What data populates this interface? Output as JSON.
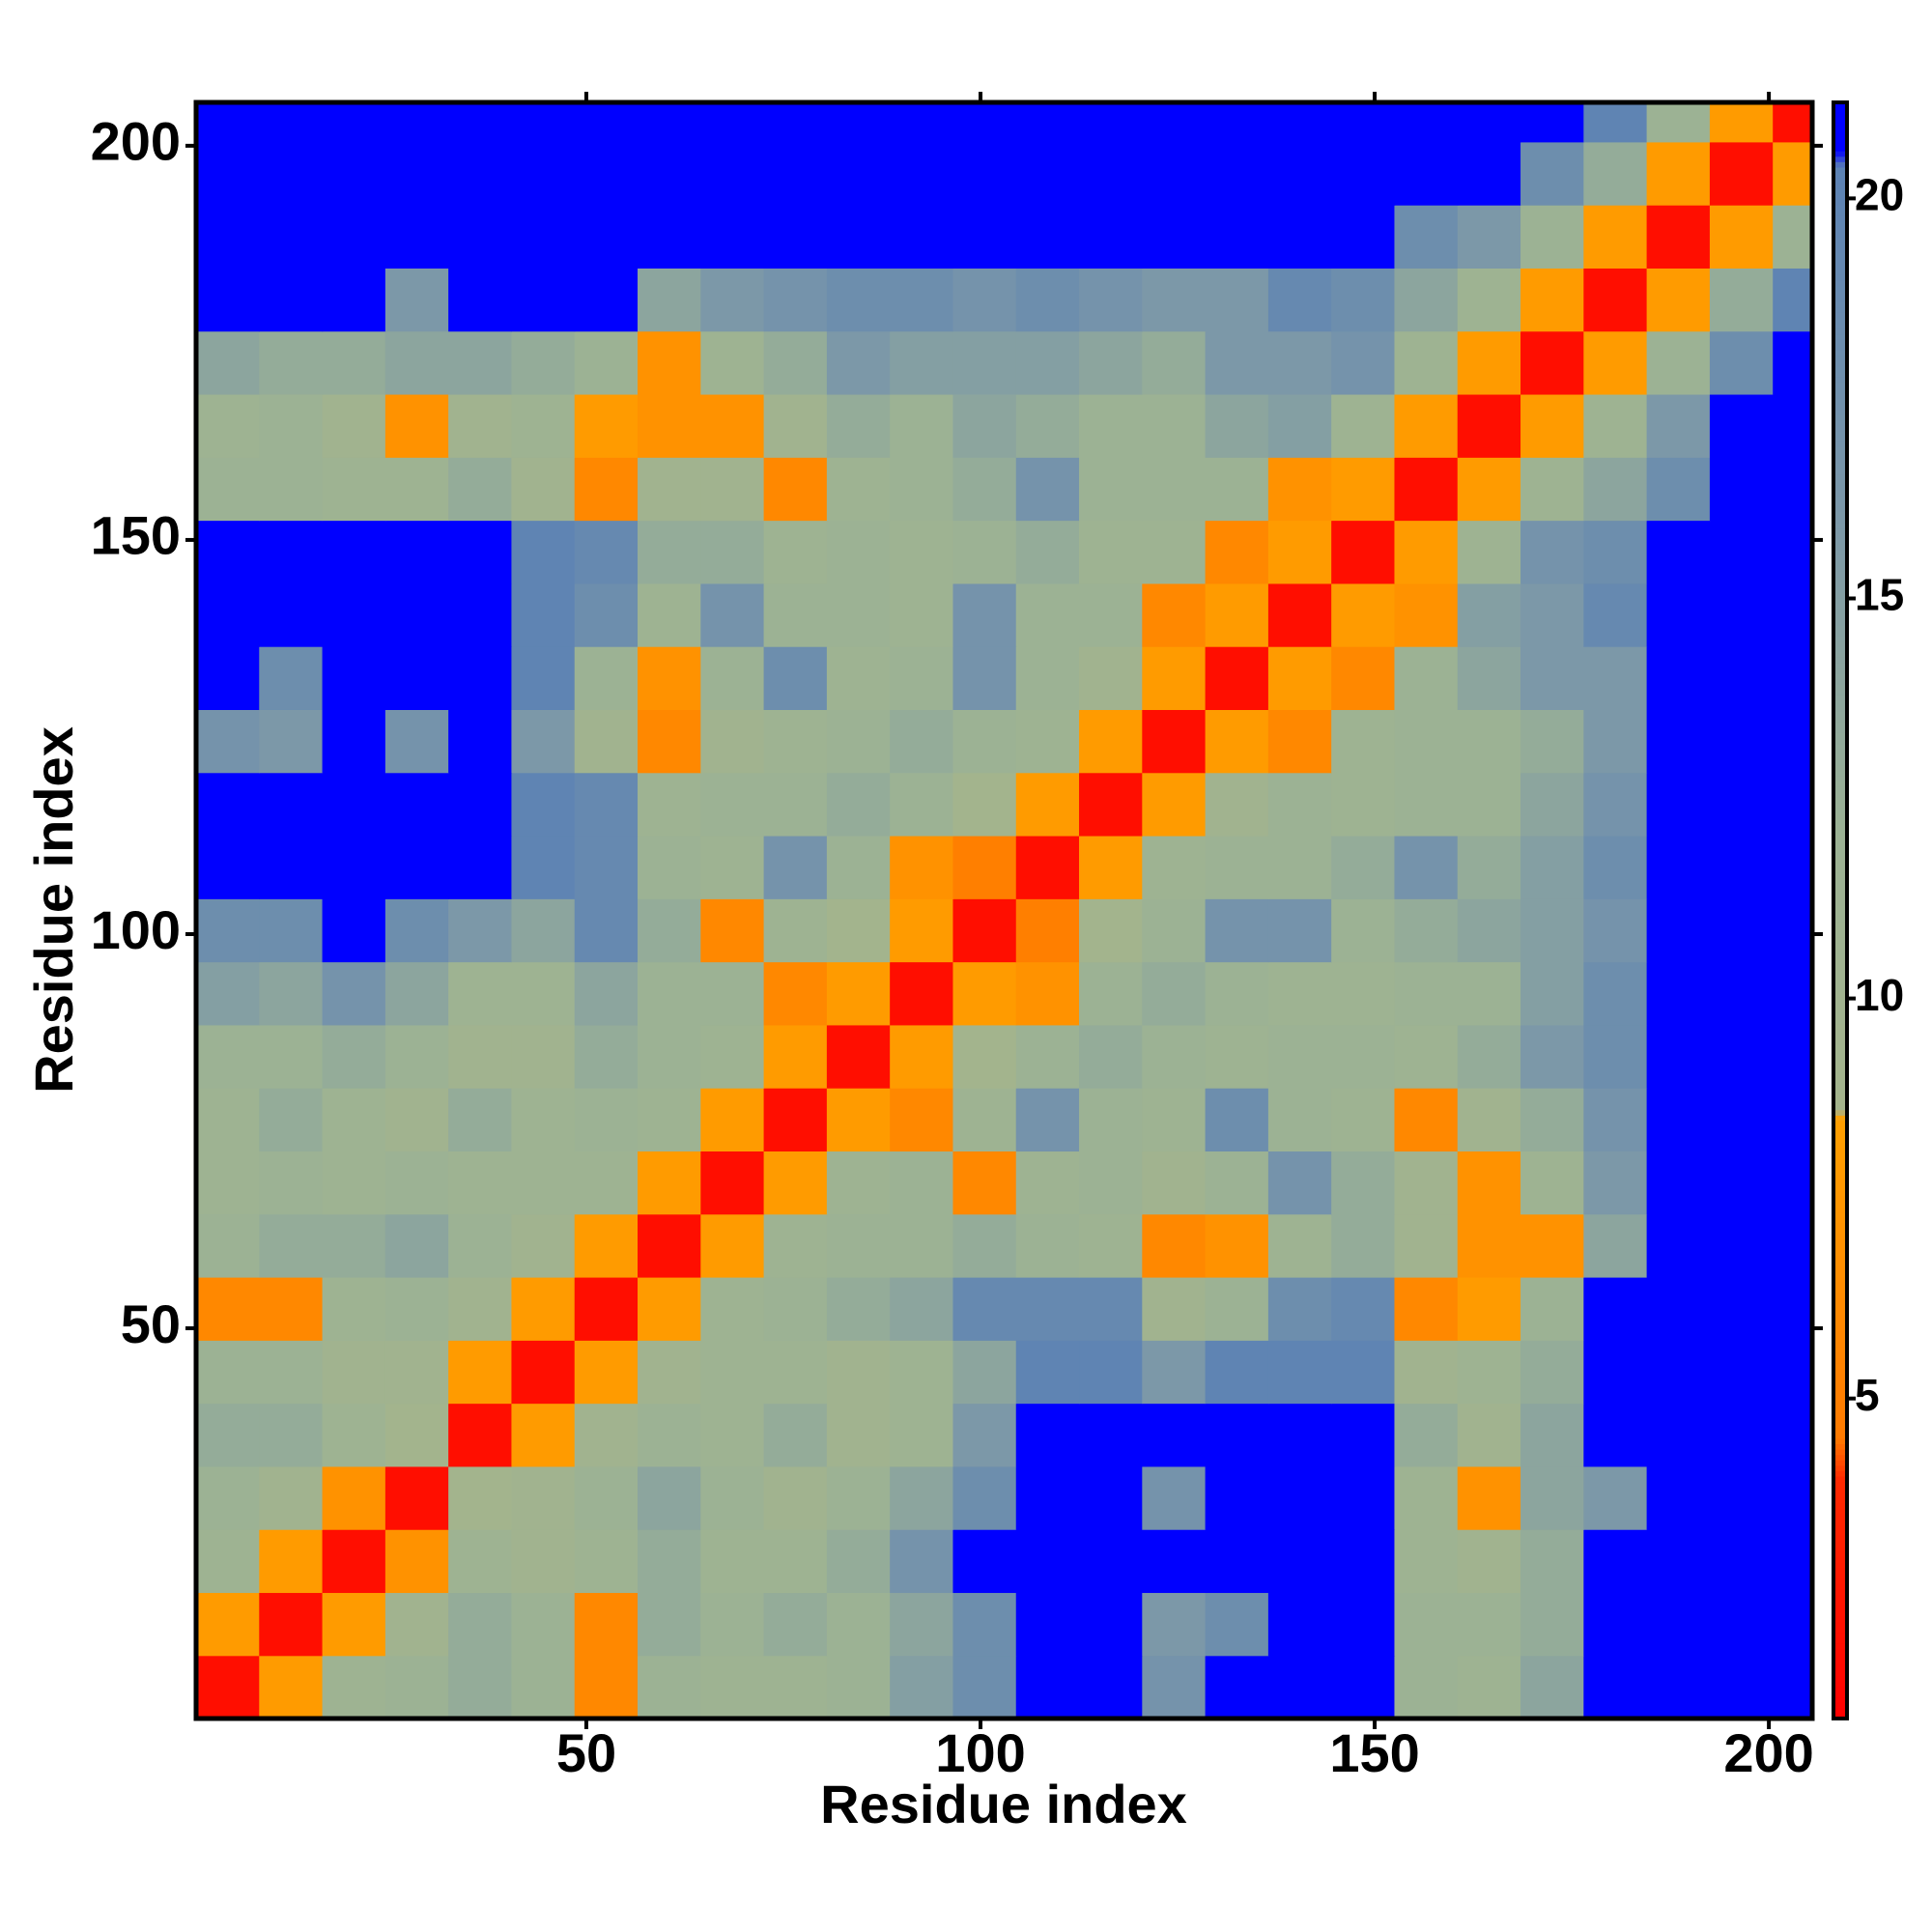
{
  "chart_data": {
    "type": "heatmap",
    "x_label": "Residue index",
    "y_label": "Residue index",
    "xlim": [
      0.5,
      205.5
    ],
    "ylim": [
      0.5,
      205.5
    ],
    "xticks": [
      50,
      100,
      150,
      200
    ],
    "yticks": [
      50,
      100,
      150,
      200
    ],
    "zlim": [
      1,
      21.2
    ],
    "zticks": [
      5,
      10,
      15,
      20
    ],
    "colorscale": [
      [
        1,
        "#ff0000"
      ],
      [
        4,
        "#ff2a00"
      ],
      [
        4.5,
        "#ff7a00"
      ],
      [
        8.5,
        "#ffa000"
      ],
      [
        8.6,
        "#a4b48c"
      ],
      [
        12,
        "#9cb294"
      ],
      [
        16,
        "#7c98a8"
      ],
      [
        20.4,
        "#5c82b4"
      ],
      [
        20.6,
        "#0000ff"
      ],
      [
        21.2,
        "#0000ff"
      ]
    ],
    "x_edges": [
      0.5,
      8.5,
      16.5,
      24.5,
      32.5,
      40.5,
      48.5,
      56.5,
      64.5,
      72.5,
      80.5,
      88.5,
      96.5,
      104.5,
      112.5,
      120.5,
      128.5,
      136.5,
      144.5,
      152.5,
      160.5,
      168.5,
      176.5,
      184.5,
      192.5,
      200.5,
      205.5
    ],
    "y_edges": [
      0.5,
      8.5,
      16.5,
      24.5,
      32.5,
      40.5,
      48.5,
      56.5,
      64.5,
      72.5,
      80.5,
      88.5,
      96.5,
      104.5,
      112.5,
      120.5,
      128.5,
      136.5,
      144.5,
      152.5,
      160.5,
      168.5,
      176.5,
      184.5,
      192.5,
      200.5,
      205.5
    ],
    "z": [
      [
        2,
        8,
        11,
        12,
        13,
        12,
        6,
        12,
        11,
        11,
        12,
        15,
        18,
        21,
        21,
        17,
        21,
        21,
        21,
        12,
        11,
        14,
        21,
        21,
        21,
        21
      ],
      [
        8,
        2,
        8,
        10,
        13,
        12,
        6,
        13,
        12,
        13,
        12,
        14,
        18,
        21,
        21,
        16,
        18,
        21,
        21,
        12,
        12,
        13,
        21,
        21,
        21,
        21
      ],
      [
        11,
        8,
        2,
        7,
        11,
        10,
        11,
        13,
        11,
        11,
        13,
        17,
        21,
        21,
        21,
        21,
        21,
        21,
        21,
        11,
        10,
        13,
        21,
        21,
        21,
        21
      ],
      [
        12,
        10,
        7,
        2,
        9,
        10,
        12,
        14,
        12,
        10,
        12,
        14,
        18,
        21,
        21,
        17,
        21,
        21,
        21,
        11,
        7,
        14,
        16,
        21,
        21,
        21
      ],
      [
        13,
        13,
        11,
        9,
        2,
        8,
        10,
        12,
        11,
        13,
        10,
        11,
        16,
        21,
        21,
        21,
        21,
        21,
        21,
        13,
        10,
        14,
        21,
        21,
        21,
        21
      ],
      [
        12,
        12,
        10,
        10,
        8,
        2,
        8,
        10,
        11,
        11,
        10,
        11,
        14,
        20,
        20,
        16,
        20,
        20,
        20,
        10,
        11,
        13,
        21,
        21,
        21,
        21
      ],
      [
        6,
        6,
        11,
        12,
        10,
        8,
        2,
        8,
        11,
        12,
        13,
        14,
        19,
        19,
        19,
        10,
        12,
        18,
        19,
        6,
        8,
        12,
        21,
        21,
        21,
        21
      ],
      [
        12,
        13,
        13,
        14,
        12,
        10,
        8,
        2,
        8,
        11,
        12,
        12,
        13,
        12,
        11,
        6,
        7,
        11,
        13,
        10,
        7,
        7,
        14,
        21,
        21,
        21
      ],
      [
        11,
        12,
        11,
        12,
        11,
        11,
        11,
        8,
        2,
        8,
        11,
        12,
        6,
        11,
        12,
        10,
        12,
        17,
        13,
        10,
        7,
        11,
        16,
        21,
        21,
        21
      ],
      [
        11,
        13,
        11,
        10,
        13,
        11,
        12,
        11,
        8,
        2,
        8,
        6,
        11,
        17,
        12,
        11,
        18,
        12,
        11,
        6,
        10,
        13,
        17,
        21,
        21,
        21
      ],
      [
        12,
        12,
        13,
        12,
        10,
        10,
        13,
        12,
        11,
        8,
        2,
        8,
        9,
        12,
        13,
        12,
        11,
        12,
        12,
        11,
        13,
        16,
        18,
        21,
        21,
        21
      ],
      [
        15,
        14,
        17,
        14,
        11,
        11,
        14,
        12,
        12,
        6,
        8,
        2,
        8,
        7,
        12,
        13,
        12,
        11,
        11,
        12,
        12,
        15,
        18,
        21,
        21,
        21
      ],
      [
        18,
        18,
        21,
        18,
        16,
        14,
        19,
        13,
        6,
        11,
        9,
        8,
        2,
        5,
        9,
        12,
        17,
        17,
        12,
        13,
        14,
        15,
        17,
        21,
        21,
        21
      ],
      [
        21,
        21,
        21,
        21,
        21,
        20,
        19,
        12,
        11,
        17,
        12,
        7,
        5,
        2,
        8,
        11,
        12,
        12,
        13,
        17,
        13,
        15,
        18,
        21,
        21,
        21
      ],
      [
        21,
        21,
        21,
        21,
        21,
        20,
        19,
        11,
        12,
        12,
        13,
        12,
        9,
        8,
        2,
        8,
        10,
        12,
        11,
        12,
        12,
        14,
        17,
        21,
        21,
        21
      ],
      [
        17,
        16,
        21,
        17,
        21,
        16,
        10,
        6,
        10,
        11,
        12,
        13,
        12,
        11,
        8,
        2,
        8,
        6,
        11,
        12,
        12,
        13,
        16,
        21,
        21,
        21
      ],
      [
        21,
        18,
        21,
        21,
        21,
        20,
        12,
        7,
        12,
        18,
        11,
        12,
        17,
        12,
        10,
        8,
        2,
        8,
        6,
        12,
        14,
        16,
        16,
        21,
        21,
        21
      ],
      [
        21,
        21,
        21,
        21,
        21,
        20,
        18,
        11,
        17,
        12,
        12,
        11,
        17,
        12,
        12,
        6,
        8,
        2,
        8,
        7,
        15,
        16,
        19,
        21,
        21,
        21
      ],
      [
        21,
        21,
        21,
        21,
        21,
        20,
        19,
        13,
        13,
        11,
        12,
        11,
        12,
        13,
        11,
        11,
        6,
        8,
        2,
        8,
        11,
        17,
        18,
        21,
        21,
        21
      ],
      [
        12,
        12,
        11,
        11,
        13,
        10,
        6,
        10,
        10,
        6,
        11,
        12,
        13,
        17,
        12,
        12,
        12,
        7,
        8,
        2,
        8,
        11,
        14,
        18,
        21,
        21
      ],
      [
        11,
        12,
        10,
        7,
        10,
        11,
        8,
        7,
        7,
        10,
        13,
        12,
        14,
        13,
        12,
        12,
        14,
        15,
        11,
        8,
        2,
        8,
        11,
        16,
        21,
        21
      ],
      [
        14,
        13,
        13,
        14,
        14,
        13,
        12,
        7,
        11,
        13,
        16,
        15,
        15,
        15,
        14,
        13,
        16,
        16,
        17,
        11,
        8,
        2,
        8,
        12,
        18,
        21
      ],
      [
        21,
        21,
        21,
        16,
        21,
        21,
        21,
        14,
        16,
        17,
        18,
        18,
        17,
        18,
        17,
        16,
        16,
        19,
        18,
        14,
        11,
        8,
        2,
        8,
        13,
        20
      ],
      [
        21,
        21,
        21,
        21,
        21,
        21,
        21,
        21,
        21,
        21,
        21,
        21,
        21,
        21,
        21,
        21,
        21,
        21,
        21,
        18,
        16,
        12,
        8,
        2,
        8,
        12
      ],
      [
        21,
        21,
        21,
        21,
        21,
        21,
        21,
        21,
        21,
        21,
        21,
        21,
        21,
        21,
        21,
        21,
        21,
        21,
        21,
        21,
        21,
        18,
        13,
        8,
        2,
        8
      ],
      [
        21,
        21,
        21,
        21,
        21,
        21,
        21,
        21,
        21,
        21,
        21,
        21,
        21,
        21,
        21,
        21,
        21,
        21,
        21,
        21,
        21,
        21,
        20,
        12,
        8,
        2
      ]
    ]
  }
}
